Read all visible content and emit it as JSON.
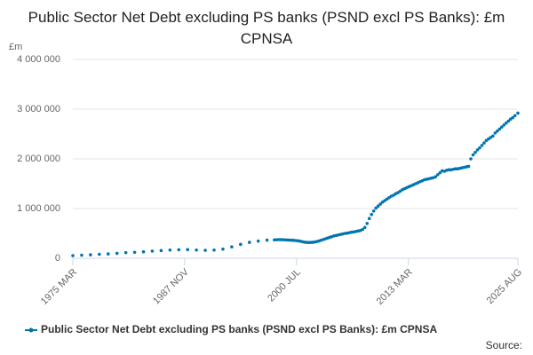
{
  "chart_data": {
    "type": "line",
    "title": "Public Sector Net Debt excluding PS banks (PSND excl PS Banks): £m CPNSA",
    "y_unit": "£m",
    "source": "Source:",
    "x": [
      1975.17,
      1976.17,
      1977.17,
      1978.17,
      1979.17,
      1980.17,
      1981.17,
      1982.17,
      1983.17,
      1984.17,
      1985.17,
      1986.17,
      1987.17,
      1988.17,
      1989.17,
      1990.17,
      1991.17,
      1992.17,
      1993.17,
      1994.17,
      1995.17,
      1996.17,
      1997.17,
      1998.0,
      1998.25,
      1998.5,
      1998.75,
      1999.0,
      1999.25,
      1999.5,
      1999.75,
      2000.0,
      2000.25,
      2000.5,
      2000.75,
      2001.0,
      2001.25,
      2001.5,
      2001.75,
      2002.0,
      2002.25,
      2002.5,
      2002.75,
      2003.0,
      2003.25,
      2003.5,
      2003.75,
      2004.0,
      2004.25,
      2004.5,
      2004.75,
      2005.0,
      2005.25,
      2005.5,
      2005.75,
      2006.0,
      2006.25,
      2006.5,
      2006.75,
      2007.0,
      2007.25,
      2007.5,
      2007.75,
      2008.0,
      2008.25,
      2008.5,
      2008.75,
      2009.0,
      2009.25,
      2009.5,
      2009.75,
      2010.0,
      2010.25,
      2010.5,
      2010.75,
      2011.0,
      2011.25,
      2011.5,
      2011.75,
      2012.0,
      2012.25,
      2012.5,
      2012.75,
      2013.0,
      2013.25,
      2013.5,
      2013.75,
      2014.0,
      2014.25,
      2014.5,
      2014.75,
      2015.0,
      2015.25,
      2015.5,
      2015.75,
      2016.0,
      2016.25,
      2016.5,
      2016.75,
      2017.0,
      2017.25,
      2017.5,
      2017.75,
      2018.0,
      2018.25,
      2018.5,
      2018.75,
      2019.0,
      2019.25,
      2019.5,
      2019.75,
      2020.0,
      2020.25,
      2020.5,
      2020.75,
      2021.0,
      2021.25,
      2021.5,
      2021.75,
      2022.0,
      2022.25,
      2022.5,
      2022.75,
      2023.0,
      2023.25,
      2023.5,
      2023.75,
      2024.0,
      2024.25,
      2024.5,
      2024.75,
      2025.0,
      2025.25,
      2025.58
    ],
    "series": [
      {
        "name": "Public Sector Net Debt excluding PS banks (PSND excl PS Banks): £m CPNSA",
        "color": "#0075b0",
        "values": [
          53000,
          62000,
          70000,
          80000,
          88000,
          100000,
          113000,
          120000,
          130000,
          145000,
          155000,
          165000,
          172000,
          175000,
          165000,
          160000,
          165000,
          185000,
          230000,
          280000,
          320000,
          345000,
          365000,
          370000,
          372000,
          375000,
          373000,
          372000,
          370000,
          368000,
          365000,
          362000,
          360000,
          355000,
          350000,
          340000,
          330000,
          322000,
          318000,
          318000,
          320000,
          325000,
          335000,
          345000,
          360000,
          375000,
          390000,
          405000,
          420000,
          435000,
          450000,
          460000,
          470000,
          480000,
          490000,
          500000,
          505000,
          515000,
          525000,
          530000,
          540000,
          550000,
          560000,
          580000,
          620000,
          700000,
          800000,
          880000,
          950000,
          1010000,
          1050000,
          1090000,
          1130000,
          1160000,
          1190000,
          1220000,
          1250000,
          1270000,
          1300000,
          1320000,
          1350000,
          1380000,
          1400000,
          1420000,
          1440000,
          1460000,
          1480000,
          1500000,
          1520000,
          1540000,
          1560000,
          1580000,
          1590000,
          1600000,
          1610000,
          1620000,
          1640000,
          1680000,
          1720000,
          1760000,
          1750000,
          1770000,
          1780000,
          1780000,
          1790000,
          1800000,
          1800000,
          1810000,
          1820000,
          1830000,
          1840000,
          1850000,
          2000000,
          2080000,
          2130000,
          2180000,
          2220000,
          2270000,
          2320000,
          2370000,
          2400000,
          2430000,
          2460000,
          2520000,
          2560000,
          2600000,
          2640000,
          2680000,
          2720000,
          2760000,
          2800000,
          2830000,
          2870000,
          2920000
        ]
      }
    ],
    "xlim": [
      1975.17,
      2025.58
    ],
    "xticks": [
      {
        "value": 1975.17,
        "label": "1975 MAR"
      },
      {
        "value": 1987.83,
        "label": "1987 NOV"
      },
      {
        "value": 2000.5,
        "label": "2000 JUL"
      },
      {
        "value": 2013.17,
        "label": "2013 MAR"
      },
      {
        "value": 2025.58,
        "label": "2025 AUG"
      }
    ],
    "ylim": [
      0,
      4000000
    ],
    "yticks": [
      0,
      {
        "value": 1000000,
        "label": "1 000 000"
      },
      {
        "value": 2000000,
        "label": "2 000 000"
      },
      {
        "value": 3000000,
        "label": "3 000 000"
      },
      {
        "value": 4000000,
        "label": "4 000 000"
      }
    ],
    "grid": true
  }
}
